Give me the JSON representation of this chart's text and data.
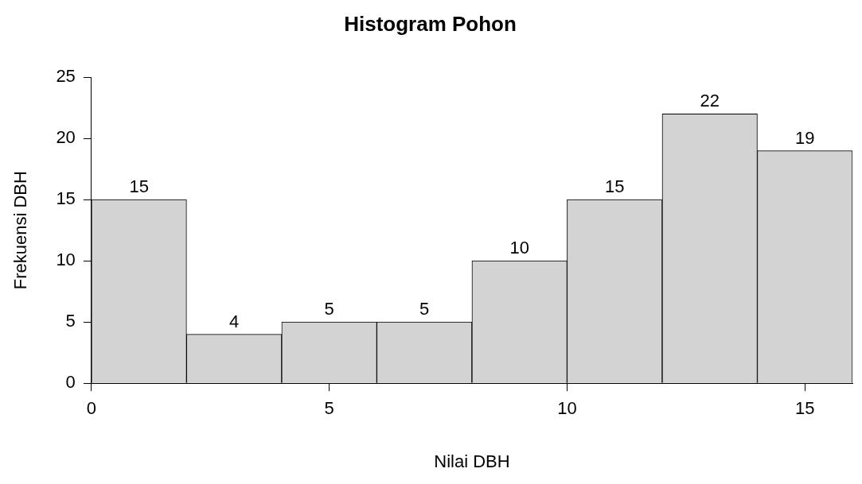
{
  "chart_data": {
    "type": "histogram",
    "title": "Histogram Pohon",
    "xlabel": "Nilai DBH",
    "ylabel": "Frekuensi DBH",
    "bins": [
      0,
      2,
      4,
      6,
      8,
      10,
      12,
      14,
      16
    ],
    "values": [
      15,
      4,
      5,
      5,
      10,
      15,
      22,
      19
    ],
    "color": "#d3d3d3",
    "xlim": [
      0,
      16
    ],
    "xticks": [
      0,
      5,
      10,
      15
    ],
    "ylim": [
      0,
      25
    ],
    "yticks": [
      0,
      5,
      10,
      15,
      20,
      25
    ],
    "grid": false,
    "legend": false,
    "data_labels": true
  }
}
